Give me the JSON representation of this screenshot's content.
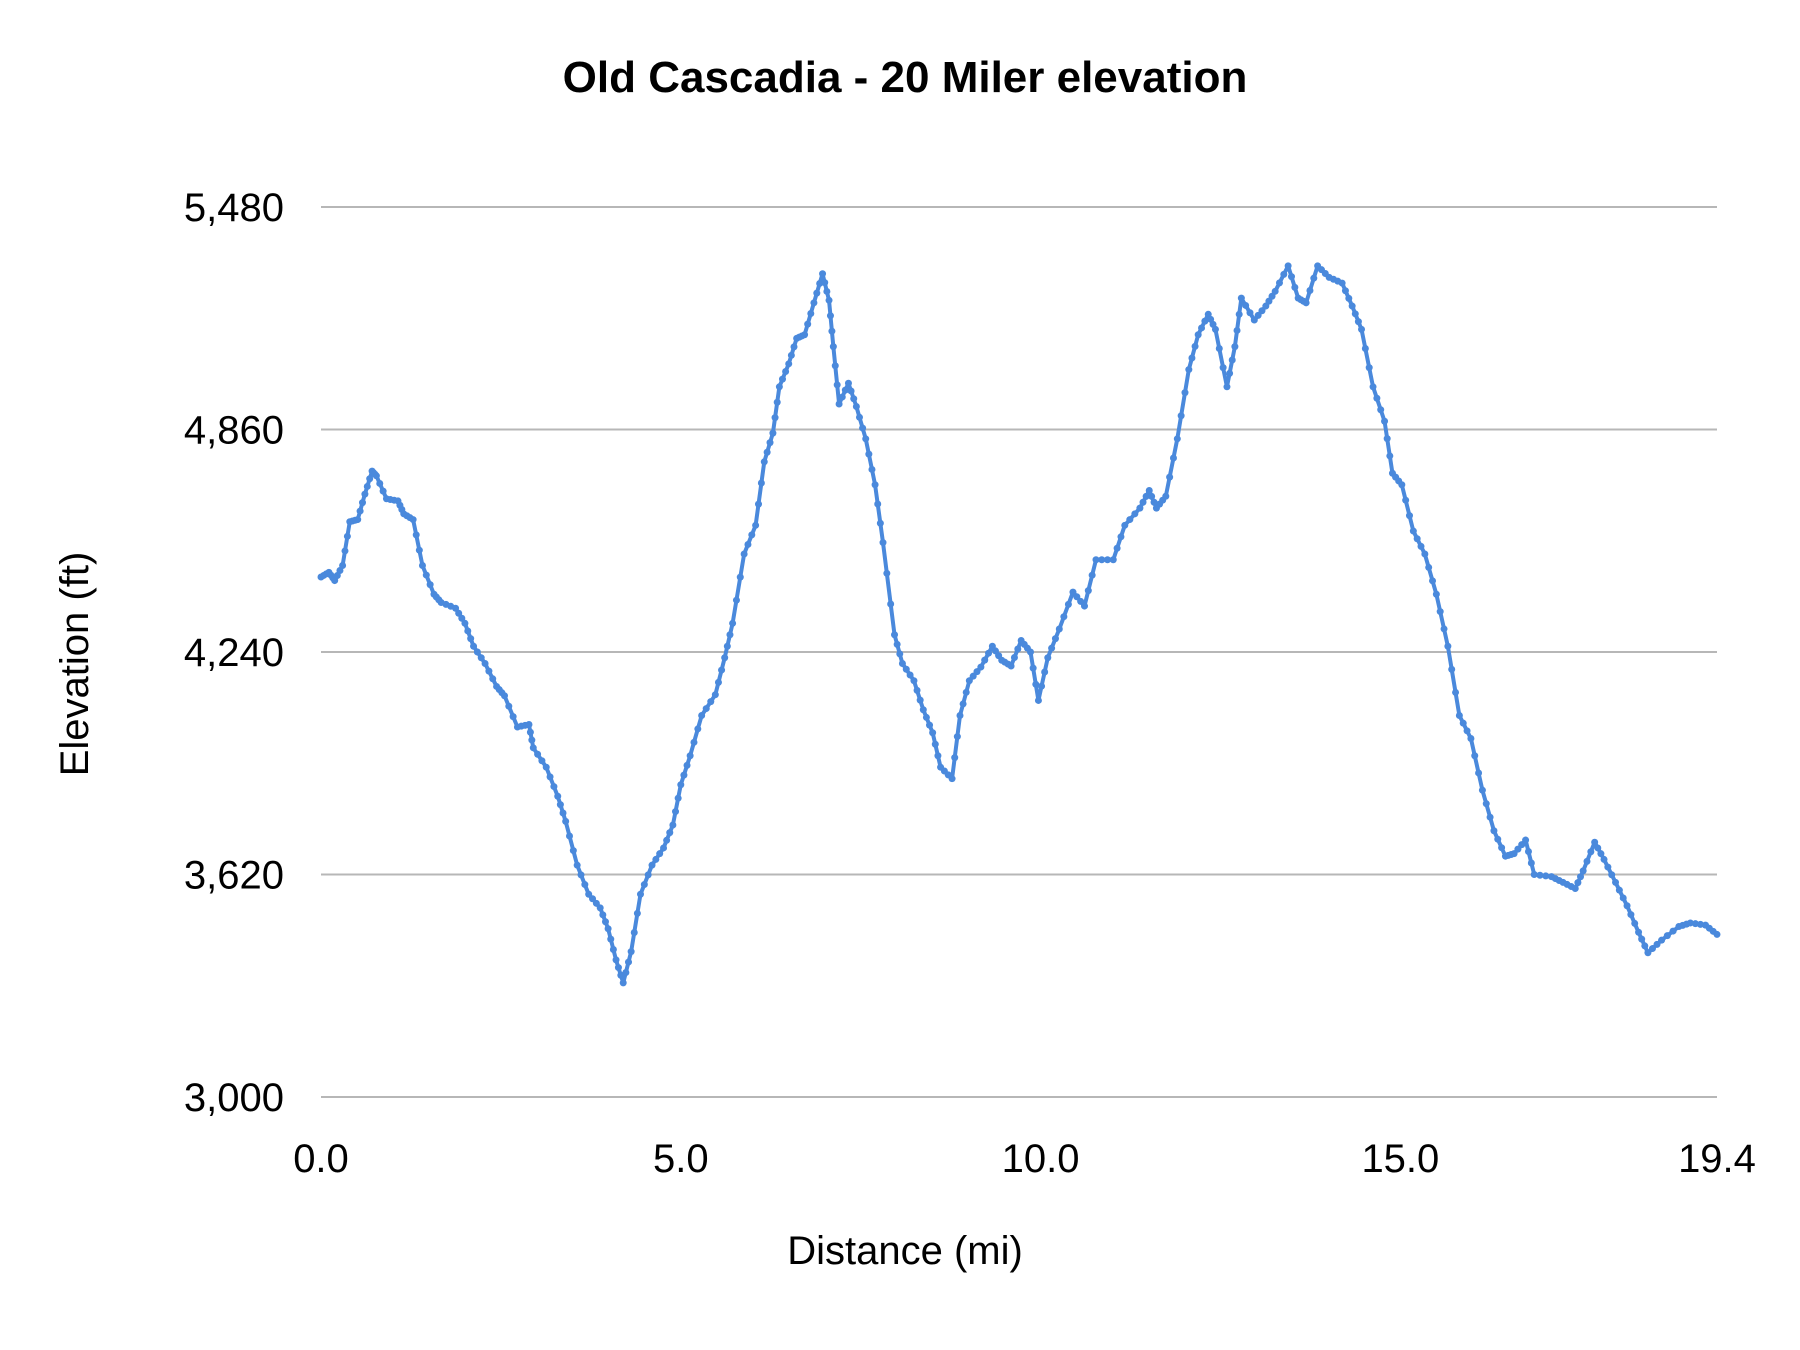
{
  "chart_data": {
    "type": "line",
    "title": "Old Cascadia - 20 Miler elevation",
    "xlabel": "Distance (mi)",
    "ylabel": "Elevation (ft)",
    "xlim": [
      0,
      19.4
    ],
    "ylim": [
      3000,
      5480
    ],
    "x_ticks": [
      0,
      5,
      10,
      15,
      19.4
    ],
    "x_tick_labels": [
      "0.0",
      "5.0",
      "10.0",
      "15.0",
      "19.4"
    ],
    "y_ticks": [
      3000,
      3620,
      4240,
      4860,
      5480
    ],
    "y_tick_labels": [
      "3,000",
      "3,620",
      "4,240",
      "4,860",
      "5,480"
    ],
    "grid": "horizontal",
    "legend": "none",
    "line_color": "#4a89dc",
    "markers": true,
    "series": [
      {
        "x": [
          0,
          0.11,
          0.19,
          0.3,
          0.4,
          0.51,
          0.61,
          0.71,
          0.77,
          0.91,
          1.07,
          1.15,
          1.28,
          1.41,
          1.57,
          1.67,
          1.87,
          2.0,
          2.12,
          2.28,
          2.44,
          2.55,
          2.73,
          2.89,
          2.95,
          3.13,
          3.29,
          3.4,
          3.56,
          3.72,
          3.88,
          3.99,
          4.1,
          4.2,
          4.31,
          4.44,
          4.6,
          4.76,
          4.89,
          5.0,
          5.13,
          5.29,
          5.48,
          5.61,
          5.72,
          5.88,
          6.04,
          6.16,
          6.28,
          6.37,
          6.5,
          6.61,
          6.72,
          6.85,
          6.97,
          7.06,
          7.12,
          7.2,
          7.33,
          7.44,
          7.57,
          7.7,
          7.81,
          7.97,
          8.08,
          8.24,
          8.37,
          8.5,
          8.61,
          8.77,
          8.88,
          9.01,
          9.17,
          9.33,
          9.46,
          9.59,
          9.73,
          9.86,
          9.97,
          10.1,
          10.26,
          10.45,
          10.61,
          10.77,
          11.01,
          11.17,
          11.38,
          11.51,
          11.61,
          11.74,
          11.9,
          12.06,
          12.19,
          12.33,
          12.43,
          12.59,
          12.7,
          12.79,
          12.97,
          13.13,
          13.26,
          13.44,
          13.58,
          13.69,
          13.85,
          14.01,
          14.19,
          14.33,
          14.46,
          14.62,
          14.78,
          14.89,
          15.02,
          15.18,
          15.34,
          15.5,
          15.66,
          15.82,
          15.98,
          16.14,
          16.3,
          16.46,
          16.58,
          16.74,
          16.86,
          17.1,
          17.26,
          17.43,
          17.54,
          17.7,
          17.83,
          17.99,
          18.15,
          18.31,
          18.44,
          18.63,
          18.87,
          19.03,
          19.24,
          19.4
        ],
        "y": [
          4449,
          4462,
          4439,
          4481,
          4603,
          4609,
          4680,
          4744,
          4731,
          4667,
          4661,
          4625,
          4609,
          4481,
          4401,
          4378,
          4362,
          4320,
          4256,
          4208,
          4144,
          4118,
          4031,
          4038,
          3973,
          3919,
          3838,
          3768,
          3646,
          3565,
          3527,
          3469,
          3382,
          3318,
          3405,
          3565,
          3646,
          3694,
          3758,
          3870,
          3951,
          4063,
          4121,
          4224,
          4320,
          4513,
          4593,
          4770,
          4850,
          4979,
          5043,
          5114,
          5124,
          5213,
          5294,
          5220,
          5091,
          4931,
          4989,
          4924,
          4834,
          4706,
          4545,
          4288,
          4208,
          4160,
          4079,
          4015,
          3919,
          3887,
          4063,
          4160,
          4198,
          4256,
          4217,
          4201,
          4272,
          4240,
          4105,
          4224,
          4304,
          4407,
          4368,
          4497,
          4497,
          4593,
          4641,
          4690,
          4641,
          4674,
          4834,
          5027,
          5124,
          5181,
          5139,
          4979,
          5091,
          5226,
          5165,
          5204,
          5245,
          5316,
          5226,
          5213,
          5316,
          5284,
          5268,
          5204,
          5139,
          4979,
          4883,
          4738,
          4706,
          4577,
          4513,
          4401,
          4256,
          4063,
          3999,
          3855,
          3742,
          3671,
          3678,
          3716,
          3620,
          3614,
          3598,
          3581,
          3630,
          3710,
          3662,
          3598,
          3533,
          3459,
          3402,
          3437,
          3475,
          3485,
          3479,
          3453
        ]
      }
    ]
  }
}
